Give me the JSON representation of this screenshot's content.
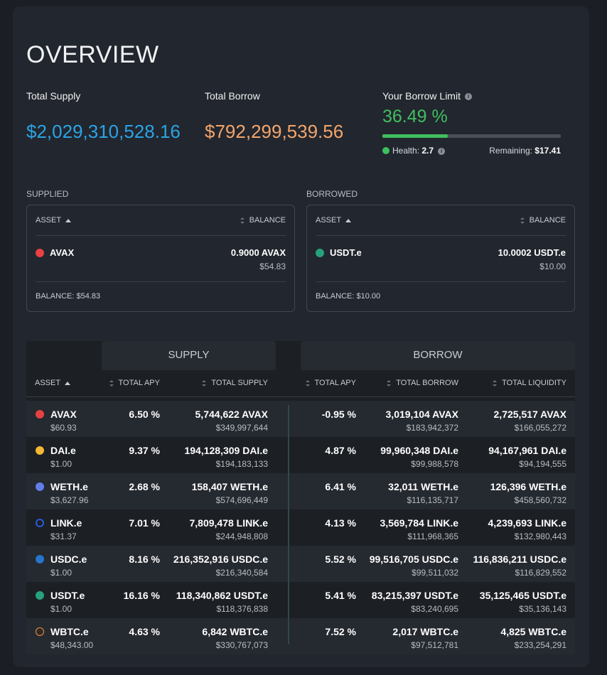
{
  "overview": {
    "title": "OVERVIEW",
    "total_supply_label": "Total Supply",
    "total_supply_value": "$2,029,310,528.16",
    "total_borrow_label": "Total Borrow",
    "total_borrow_value": "$792,299,539.56",
    "borrow_limit_label": "Your Borrow Limit",
    "borrow_limit_value": "36.49 %",
    "borrow_limit_fraction": 0.3649,
    "health_label": "Health:",
    "health_value": "2.7",
    "remaining_label": "Remaining:",
    "remaining_value": "$17.41"
  },
  "supplied": {
    "section_label": "SUPPLIED",
    "col_asset": "ASSET",
    "col_balance": "BALANCE",
    "asset": "AVAX",
    "amount": "0.9000 AVAX",
    "usd": "$54.83",
    "balance_text": "BALANCE: $54.83"
  },
  "borrowed": {
    "section_label": "BORROWED",
    "col_asset": "ASSET",
    "col_balance": "BALANCE",
    "asset": "USDT.e",
    "amount": "10.0002 USDT.e",
    "usd": "$10.00",
    "balance_text": "BALANCE: $10.00"
  },
  "market": {
    "tab_supply": "SUPPLY",
    "tab_borrow": "BORROW",
    "headers": {
      "asset": "ASSET",
      "supply_apy": "TOTAL APY",
      "total_supply": "TOTAL SUPPLY",
      "borrow_apy": "TOTAL APY",
      "total_borrow": "TOTAL BORROW",
      "total_liquidity": "TOTAL LIQUIDITY"
    },
    "rows": [
      {
        "icon": "avax-icon",
        "symbol": "AVAX",
        "price": "$60.93",
        "supply_apy": "6.50 %",
        "supply": "5,744,622 AVAX",
        "supply_usd": "$349,997,644",
        "borrow_apy": "-0.95 %",
        "borrow": "3,019,104 AVAX",
        "borrow_usd": "$183,942,372",
        "liquidity": "2,725,517 AVAX",
        "liquidity_usd": "$166,055,272"
      },
      {
        "icon": "dai-icon",
        "symbol": "DAI.e",
        "price": "$1.00",
        "supply_apy": "9.37 %",
        "supply": "194,128,309 DAI.e",
        "supply_usd": "$194,183,133",
        "borrow_apy": "4.87 %",
        "borrow": "99,960,348 DAI.e",
        "borrow_usd": "$99,988,578",
        "liquidity": "94,167,961 DAI.e",
        "liquidity_usd": "$94,194,555"
      },
      {
        "icon": "weth-icon",
        "symbol": "WETH.e",
        "price": "$3,627.96",
        "supply_apy": "2.68 %",
        "supply": "158,407 WETH.e",
        "supply_usd": "$574,696,449",
        "borrow_apy": "6.41 %",
        "borrow": "32,011 WETH.e",
        "borrow_usd": "$116,135,717",
        "liquidity": "126,396 WETH.e",
        "liquidity_usd": "$458,560,732"
      },
      {
        "icon": "link-icon",
        "symbol": "LINK.e",
        "price": "$31.37",
        "supply_apy": "7.01 %",
        "supply": "7,809,478 LINK.e",
        "supply_usd": "$244,948,808",
        "borrow_apy": "4.13 %",
        "borrow": "3,569,784 LINK.e",
        "borrow_usd": "$111,968,365",
        "liquidity": "4,239,693 LINK.e",
        "liquidity_usd": "$132,980,443"
      },
      {
        "icon": "usdc-icon",
        "symbol": "USDC.e",
        "price": "$1.00",
        "supply_apy": "8.16 %",
        "supply": "216,352,916 USDC.e",
        "supply_usd": "$216,340,584",
        "borrow_apy": "5.52 %",
        "borrow": "99,516,705 USDC.e",
        "borrow_usd": "$99,511,032",
        "liquidity": "116,836,211 USDC.e",
        "liquidity_usd": "$116,829,552"
      },
      {
        "icon": "usdt-icon",
        "symbol": "USDT.e",
        "price": "$1.00",
        "supply_apy": "16.16 %",
        "supply": "118,340,862 USDT.e",
        "supply_usd": "$118,376,838",
        "borrow_apy": "5.41 %",
        "borrow": "83,215,397 USDT.e",
        "borrow_usd": "$83,240,695",
        "liquidity": "35,125,465 USDT.e",
        "liquidity_usd": "$35,136,143"
      },
      {
        "icon": "wbtc-icon",
        "symbol": "WBTC.e",
        "price": "$48,343.00",
        "supply_apy": "4.63 %",
        "supply": "6,842 WBTC.e",
        "supply_usd": "$330,767,073",
        "borrow_apy": "7.52 %",
        "borrow": "2,017 WBTC.e",
        "borrow_usd": "$97,512,781",
        "liquidity": "4,825 WBTC.e",
        "liquidity_usd": "$233,254,291"
      }
    ]
  },
  "colors": {
    "supply_accent": "#2aa4e6",
    "borrow_accent": "#f3a56b",
    "limit_accent": "#3fbf5f",
    "background": "#1b1e25"
  }
}
